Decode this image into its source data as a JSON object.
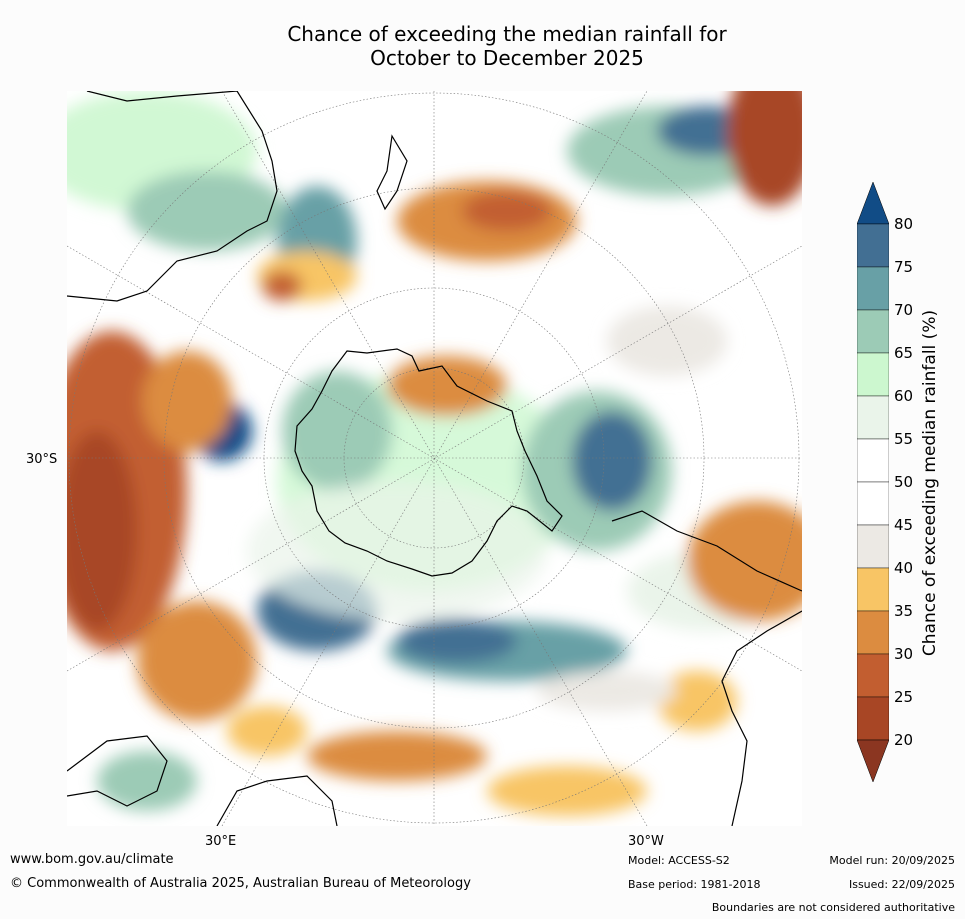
{
  "title_line1": "Chance of exceeding the median rainfall for",
  "title_line2": "October to December 2025",
  "lat_label": "30°S",
  "lon_labels": [
    "30°E",
    "30°W"
  ],
  "colorbar": {
    "label": "Chance of exceeding median rainfall (%)",
    "ticks": [
      "80",
      "75",
      "70",
      "65",
      "60",
      "55",
      "50",
      "45",
      "40",
      "35",
      "30",
      "25",
      "20"
    ],
    "bins": [
      {
        "range": "75-80",
        "color": "#426f93"
      },
      {
        "range": "70-75",
        "color": "#68a0a6"
      },
      {
        "range": "65-70",
        "color": "#9ccbb6"
      },
      {
        "range": "60-65",
        "color": "#ccf7cf"
      },
      {
        "range": "55-60",
        "color": "#eaf4ea"
      },
      {
        "range": "50-55",
        "color": "#ffffff"
      },
      {
        "range": "45-50",
        "color": "#ffffff"
      },
      {
        "range": "40-45",
        "color": "#ece9e4"
      },
      {
        "range": "35-40",
        "color": "#f8c565"
      },
      {
        "range": "30-35",
        "color": "#dc8c40"
      },
      {
        "range": "25-30",
        "color": "#c25e30"
      },
      {
        "range": "20-25",
        "color": "#a84625"
      }
    ],
    "over_color": "#114c86",
    "under_color": "#8b3621"
  },
  "footer": {
    "website": "www.bom.gov.au/climate",
    "copyright": "© Commonwealth of Australia 2025, Australian Bureau of Meteorology",
    "model": "Model: ACCESS-S2",
    "base_period": "Base period: 1981-2018",
    "model_run": "Model run: 20/09/2025",
    "issued": "Issued: 22/09/2025",
    "disclaimer": "Boundaries are not considered authoritative"
  }
}
